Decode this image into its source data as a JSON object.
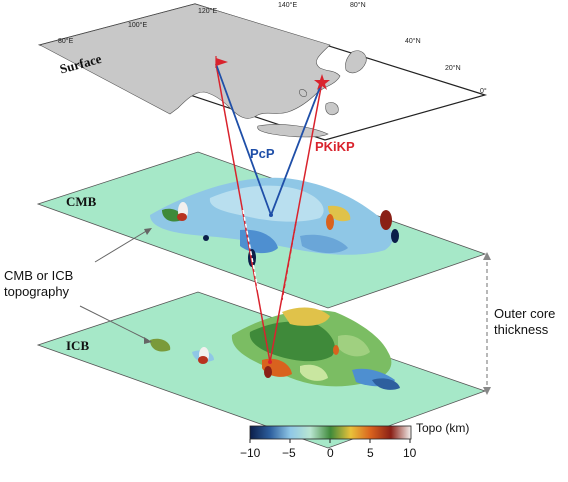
{
  "map_ticks": {
    "lon": [
      "80°E",
      "100°E",
      "120°E",
      "140°E",
      "80°N"
    ],
    "lat": [
      "40°N",
      "20°N",
      "0°"
    ]
  },
  "layers": {
    "surface": "Surface",
    "cmb": "CMB",
    "icb": "ICB"
  },
  "rays": {
    "pcp": {
      "label": "PcP",
      "color": "#1f4fa8"
    },
    "pkikp": {
      "label": "PKiKP",
      "color": "#d9232d"
    }
  },
  "annotations": {
    "topo_line1": "CMB or ICB",
    "topo_line2": "topography",
    "thickness_line1": "Outer core",
    "thickness_line2": "thickness"
  },
  "colorbar": {
    "title": "Topo (km)",
    "ticks": [
      "−10",
      "−5",
      "0",
      "5",
      "10"
    ],
    "range": [
      -10,
      10
    ],
    "colors": [
      "#0b1e4a",
      "#2d5f9e",
      "#8fc7e6",
      "#b9e6d2",
      "#3f8a3a",
      "#e9c23a",
      "#d9621e",
      "#8a2016",
      "#f3f0ee"
    ]
  },
  "colors": {
    "sea": "#ffffff",
    "land": "#c8c8c8",
    "layer_fill": "#a6e8c8"
  }
}
